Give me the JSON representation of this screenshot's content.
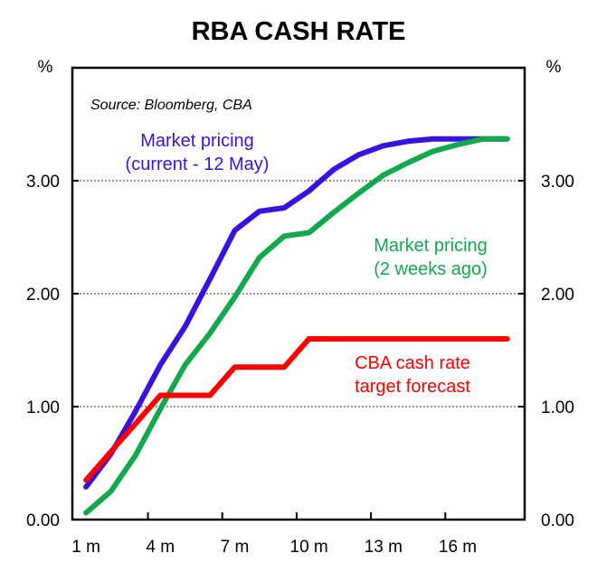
{
  "chart_data": {
    "type": "line",
    "title": "RBA CASH RATE",
    "source": "Source: Bloomberg, CBA",
    "left_unit": "%",
    "right_unit": "%",
    "x": [
      1,
      2,
      3,
      4,
      5,
      6,
      7,
      8,
      9,
      10,
      11,
      12,
      13,
      14,
      15,
      16,
      17,
      18
    ],
    "x_ticks": [
      {
        "v": 1,
        "label": "1 m"
      },
      {
        "v": 4,
        "label": "4 m"
      },
      {
        "v": 7,
        "label": "7 m"
      },
      {
        "v": 10,
        "label": "10 m"
      },
      {
        "v": 13,
        "label": "13 m"
      },
      {
        "v": 16,
        "label": "16 m"
      }
    ],
    "y_ticks": [
      {
        "v": 0,
        "label": "0.00"
      },
      {
        "v": 1,
        "label": "1.00"
      },
      {
        "v": 2,
        "label": "2.00"
      },
      {
        "v": 3,
        "label": "3.00"
      }
    ],
    "ylim": [
      0,
      4
    ],
    "xlim": [
      0.45,
      18.7
    ],
    "grid": "horizontal dotted",
    "series": [
      {
        "name_lines": [
          "Market pricing",
          "(current - 12 May)"
        ],
        "color": "#3a12e0",
        "values": [
          0.29,
          0.58,
          0.96,
          1.37,
          1.71,
          2.13,
          2.56,
          2.73,
          2.76,
          2.91,
          3.1,
          3.23,
          3.31,
          3.35,
          3.37,
          3.37,
          3.37,
          3.37
        ]
      },
      {
        "name_lines": [
          "Market pricing",
          "(2 weeks ago)"
        ],
        "color": "#12a84c",
        "values": [
          0.06,
          0.25,
          0.57,
          0.98,
          1.37,
          1.65,
          1.97,
          2.32,
          2.51,
          2.54,
          2.72,
          2.89,
          3.05,
          3.16,
          3.26,
          3.32,
          3.37,
          3.37
        ]
      },
      {
        "name_lines": [
          "CBA cash rate",
          "target forecast"
        ],
        "color": "#ff0000",
        "values": [
          0.35,
          0.6,
          0.85,
          1.1,
          1.1,
          1.1,
          1.35,
          1.35,
          1.35,
          1.6,
          1.6,
          1.6,
          1.6,
          1.6,
          1.6,
          1.6,
          1.6,
          1.6
        ]
      }
    ]
  }
}
